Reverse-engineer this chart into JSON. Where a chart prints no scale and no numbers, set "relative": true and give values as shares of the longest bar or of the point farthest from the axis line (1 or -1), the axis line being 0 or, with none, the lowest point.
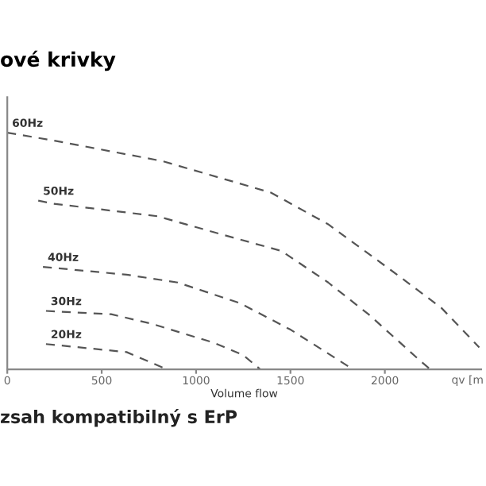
{
  "chart_data": {
    "type": "line",
    "title": "ové krivky",
    "xlabel": "Volume flow",
    "relative": true,
    "line_style": "dashed",
    "marker": "none",
    "grid": false,
    "legend": false,
    "xlim": [
      0,
      2510
    ],
    "xticks": [
      0,
      500,
      1000,
      1500,
      2000
    ],
    "annotations": [
      "qv [m",
      "zsah kompatibilný s ErP"
    ],
    "series": [
      {
        "name": "60Hz",
        "color": "#555555",
        "x": [
          0,
          246,
          821,
          1396,
          1700,
          2077,
          2299,
          2500
        ],
        "values": [
          1.0,
          0.967,
          0.88,
          0.747,
          0.613,
          0.393,
          0.26,
          0.093
        ]
      },
      {
        "name": "50Hz",
        "color": "#555555",
        "x": [
          164,
          246,
          796,
          1092,
          1453,
          1700,
          1913,
          2192,
          2241
        ],
        "values": [
          0.713,
          0.7,
          0.647,
          0.58,
          0.5,
          0.367,
          0.233,
          0.033,
          0
        ]
      },
      {
        "name": "40Hz",
        "color": "#555555",
        "x": [
          189,
          632,
          903,
          1232,
          1502,
          1806,
          1814
        ],
        "values": [
          0.433,
          0.4,
          0.367,
          0.28,
          0.167,
          0.013,
          0
        ]
      },
      {
        "name": "30Hz",
        "color": "#555555",
        "x": [
          205,
          550,
          764,
          1092,
          1250,
          1340
        ],
        "values": [
          0.247,
          0.233,
          0.193,
          0.113,
          0.06,
          0
        ]
      },
      {
        "name": "20Hz",
        "color": "#555555",
        "x": [
          205,
          632,
          846
        ],
        "values": [
          0.107,
          0.073,
          0
        ]
      }
    ]
  }
}
